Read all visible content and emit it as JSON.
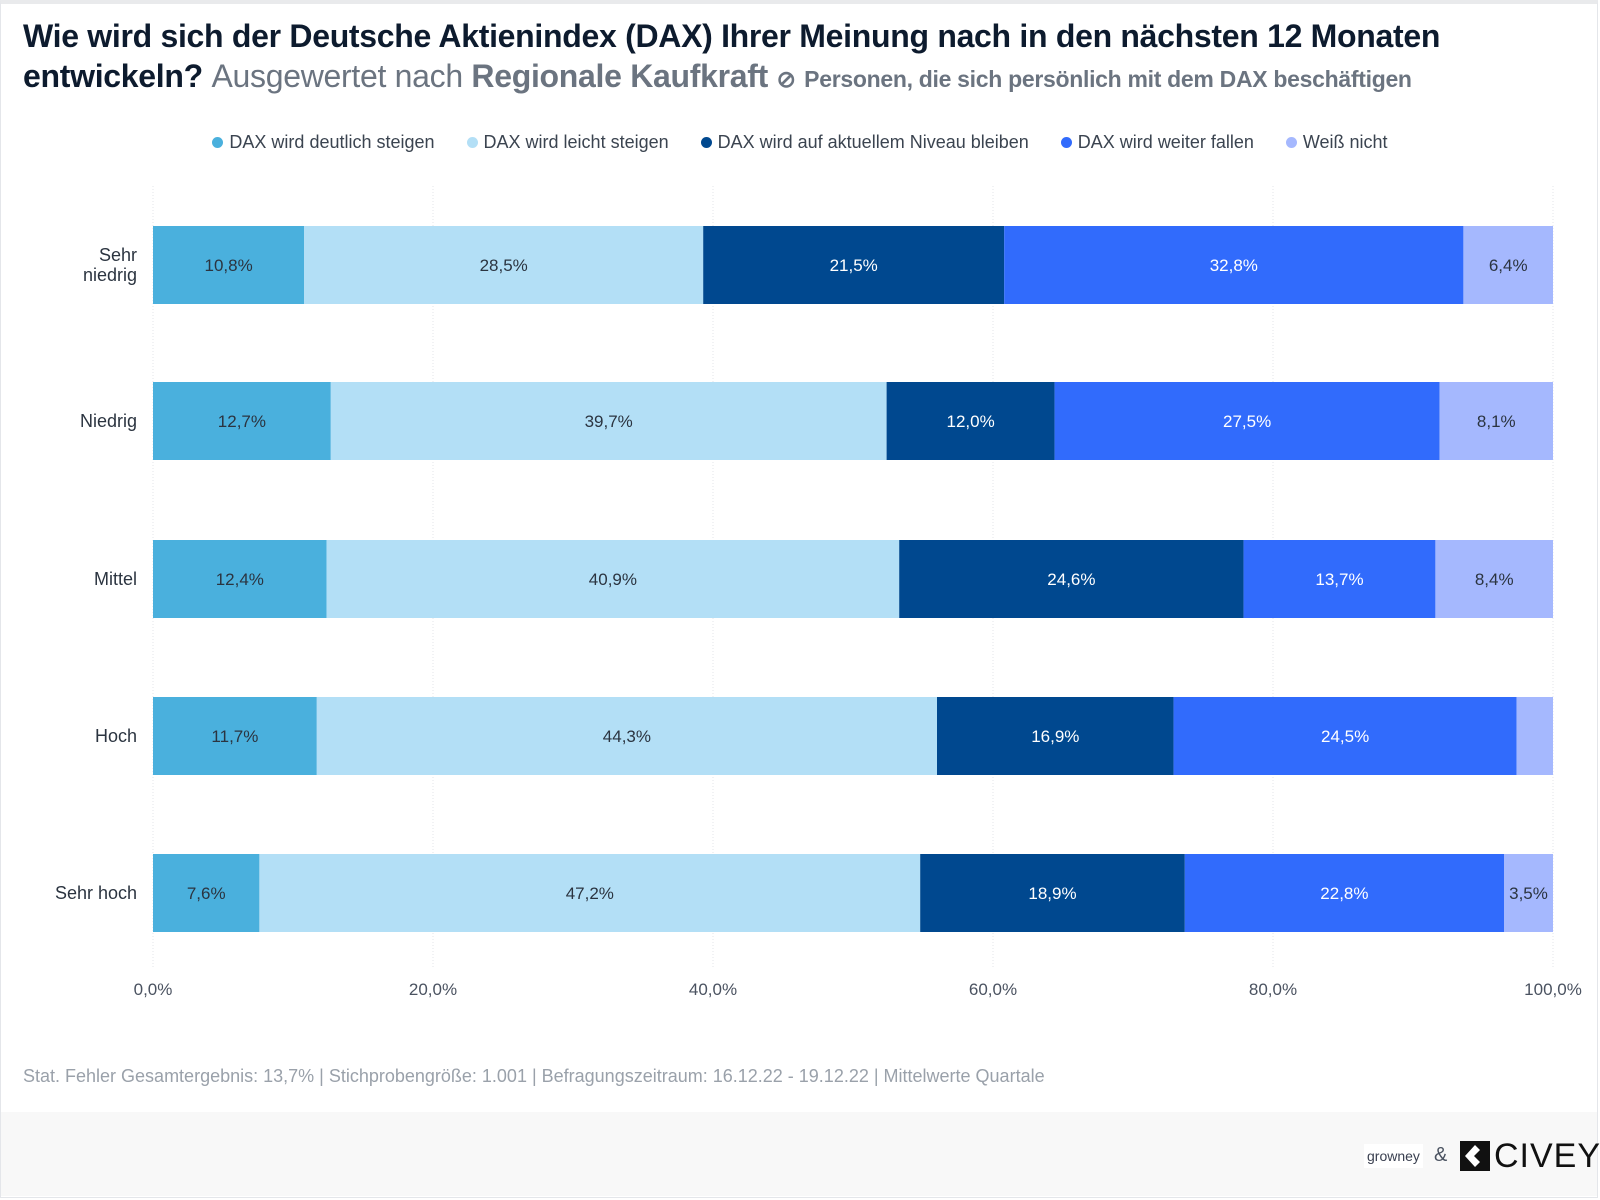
{
  "title": {
    "question": "Wie wird sich der Deutsche Aktienindex (DAX) Ihrer Meinung nach in den nächsten 12 Monaten entwickeln?",
    "evaluated_by_prefix": "Ausgewertet nach",
    "evaluated_by": "Regionale Kaufkraft",
    "filter_icon": "filter-circle-slash-icon",
    "filter": "Personen, die sich persönlich mit dem DAX beschäftigen"
  },
  "chart_data": {
    "type": "bar",
    "orientation": "horizontal",
    "stacked": true,
    "categories": [
      "Sehr niedrig",
      "Niedrig",
      "Mittel",
      "Hoch",
      "Sehr hoch"
    ],
    "series": [
      {
        "name": "DAX wird deutlich steigen",
        "color": "#4ab0dd",
        "label_color": "#2b3440",
        "values": [
          10.8,
          12.7,
          12.4,
          11.7,
          7.6
        ],
        "labels": [
          "10,8%",
          "12,7%",
          "12,4%",
          "11,7%",
          "7,6%"
        ]
      },
      {
        "name": "DAX wird leicht steigen",
        "color": "#b3dff6",
        "label_color": "#2b3440",
        "values": [
          28.5,
          39.7,
          40.9,
          44.3,
          47.2
        ],
        "labels": [
          "28,5%",
          "39,7%",
          "40,9%",
          "44,3%",
          "47,2%"
        ]
      },
      {
        "name": "DAX wird auf aktuellem Niveau bleiben",
        "color": "#00488f",
        "label_color": "#ffffff",
        "values": [
          21.5,
          12.0,
          24.6,
          16.9,
          18.9
        ],
        "labels": [
          "21,5%",
          "12,0%",
          "24,6%",
          "16,9%",
          "18,9%"
        ]
      },
      {
        "name": "DAX wird weiter fallen",
        "color": "#316bfc",
        "label_color": "#ffffff",
        "values": [
          32.8,
          27.5,
          13.7,
          24.5,
          22.8
        ],
        "labels": [
          "32,8%",
          "27,5%",
          "13,7%",
          "24,5%",
          "22,8%"
        ]
      },
      {
        "name": "Weiß nicht",
        "color": "#a5b8fe",
        "label_color": "#2b3440",
        "values": [
          6.4,
          8.1,
          8.4,
          2.6,
          3.5
        ],
        "labels": [
          "6,4%",
          "8,1%",
          "8,4%",
          null,
          "3,5%"
        ]
      }
    ],
    "xlim": [
      0,
      100
    ],
    "xticks": [
      "0,0%",
      "20,0%",
      "40,0%",
      "60,0%",
      "80,0%",
      "100,0%"
    ],
    "grid": true,
    "legend": "top"
  },
  "footer": {
    "note": "Stat. Fehler Gesamtergebnis: 13,7% | Stichprobengröße: 1.001 | Befragungszeitraum: 16.12.22 - 19.12.22 | Mittelwerte Quartale",
    "logo_growney": "growney",
    "ampersand": "&",
    "logo_civey": "CIVEY"
  }
}
